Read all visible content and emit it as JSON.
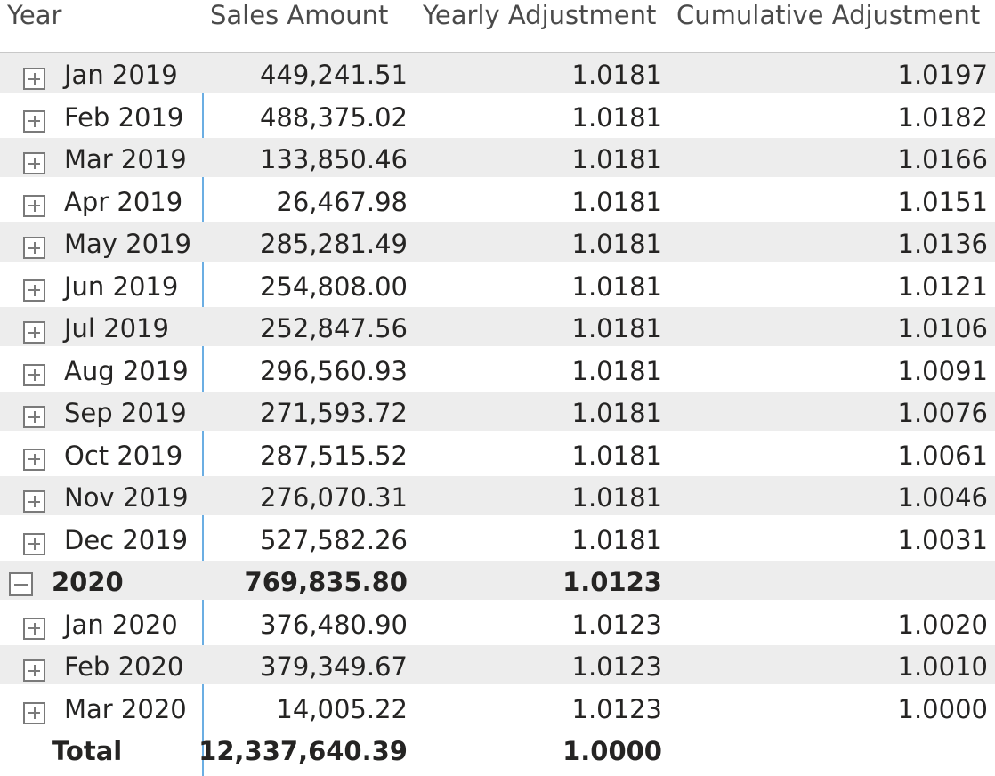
{
  "columns": {
    "year": "Year",
    "sales": "Sales Amount",
    "yearly": "Yearly Adjustment",
    "cumulative": "Cumulative Adjustment"
  },
  "rows": [
    {
      "label": "Jan 2019",
      "sales": "449,241.51",
      "yearly": "1.0181",
      "cumulative": "1.0197"
    },
    {
      "label": "Feb 2019",
      "sales": "488,375.02",
      "yearly": "1.0181",
      "cumulative": "1.0182"
    },
    {
      "label": "Mar 2019",
      "sales": "133,850.46",
      "yearly": "1.0181",
      "cumulative": "1.0166"
    },
    {
      "label": "Apr 2019",
      "sales": "26,467.98",
      "yearly": "1.0181",
      "cumulative": "1.0151"
    },
    {
      "label": "May 2019",
      "sales": "285,281.49",
      "yearly": "1.0181",
      "cumulative": "1.0136"
    },
    {
      "label": "Jun 2019",
      "sales": "254,808.00",
      "yearly": "1.0181",
      "cumulative": "1.0121"
    },
    {
      "label": "Jul 2019",
      "sales": "252,847.56",
      "yearly": "1.0181",
      "cumulative": "1.0106"
    },
    {
      "label": "Aug 2019",
      "sales": "296,560.93",
      "yearly": "1.0181",
      "cumulative": "1.0091"
    },
    {
      "label": "Sep 2019",
      "sales": "271,593.72",
      "yearly": "1.0181",
      "cumulative": "1.0076"
    },
    {
      "label": "Oct 2019",
      "sales": "287,515.52",
      "yearly": "1.0181",
      "cumulative": "1.0061"
    },
    {
      "label": "Nov 2019",
      "sales": "276,070.31",
      "yearly": "1.0181",
      "cumulative": "1.0046"
    },
    {
      "label": "Dec 2019",
      "sales": "527,582.26",
      "yearly": "1.0181",
      "cumulative": "1.0031"
    }
  ],
  "year_2020": {
    "label": "2020",
    "sales": "769,835.80",
    "yearly": "1.0123",
    "cumulative": ""
  },
  "rows_2020": [
    {
      "label": "Jan 2020",
      "sales": "376,480.90",
      "yearly": "1.0123",
      "cumulative": "1.0020"
    },
    {
      "label": "Feb 2020",
      "sales": "379,349.67",
      "yearly": "1.0123",
      "cumulative": "1.0010"
    },
    {
      "label": "Mar 2020",
      "sales": "14,005.22",
      "yearly": "1.0123",
      "cumulative": "1.0000"
    }
  ],
  "total": {
    "label": "Total",
    "sales": "12,337,640.39",
    "yearly": "1.0000",
    "cumulative": ""
  },
  "icons": {
    "expand": "expand-plus-icon",
    "collapse": "collapse-minus-icon"
  },
  "colors": {
    "row_band": "#ededed",
    "divider": "#6baee3",
    "header_border": "#c8c8c8"
  }
}
